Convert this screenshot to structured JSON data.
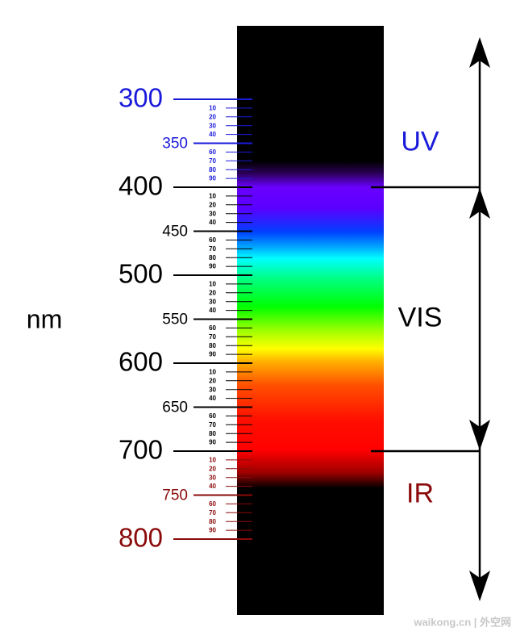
{
  "unit": "nm",
  "scale": {
    "major": [
      {
        "value": 300,
        "color": "#1a1adb"
      },
      {
        "value": 350,
        "color": "#1a1adb"
      },
      {
        "value": 400,
        "color": "#000000"
      },
      {
        "value": 450,
        "color": "#000000"
      },
      {
        "value": 500,
        "color": "#000000"
      },
      {
        "value": 550,
        "color": "#000000"
      },
      {
        "value": 600,
        "color": "#000000"
      },
      {
        "value": 650,
        "color": "#000000"
      },
      {
        "value": 700,
        "color": "#000000"
      },
      {
        "value": 750,
        "color": "#8b0a0a"
      },
      {
        "value": 800,
        "color": "#8b0a0a"
      }
    ],
    "minor_offsets": [
      10,
      20,
      30,
      40,
      60,
      70,
      80,
      90
    ],
    "minor_groups": [
      {
        "base": 300,
        "color": "#1a1adb"
      },
      {
        "base": 400,
        "color": "#000000"
      },
      {
        "base": 500,
        "color": "#000000"
      },
      {
        "base": 600,
        "color": "#000000"
      },
      {
        "base": 700,
        "color": "#8b0a0a"
      }
    ]
  },
  "regions": [
    {
      "label": "UV",
      "from": 300,
      "to": 400,
      "color": "#1a1adb"
    },
    {
      "label": "VIS",
      "from": 400,
      "to": 700,
      "color": "#000000"
    },
    {
      "label": "IR",
      "from": 700,
      "to": 800,
      "color": "#8b0a0a"
    }
  ],
  "watermark": "waikong.cn | 外空网"
}
